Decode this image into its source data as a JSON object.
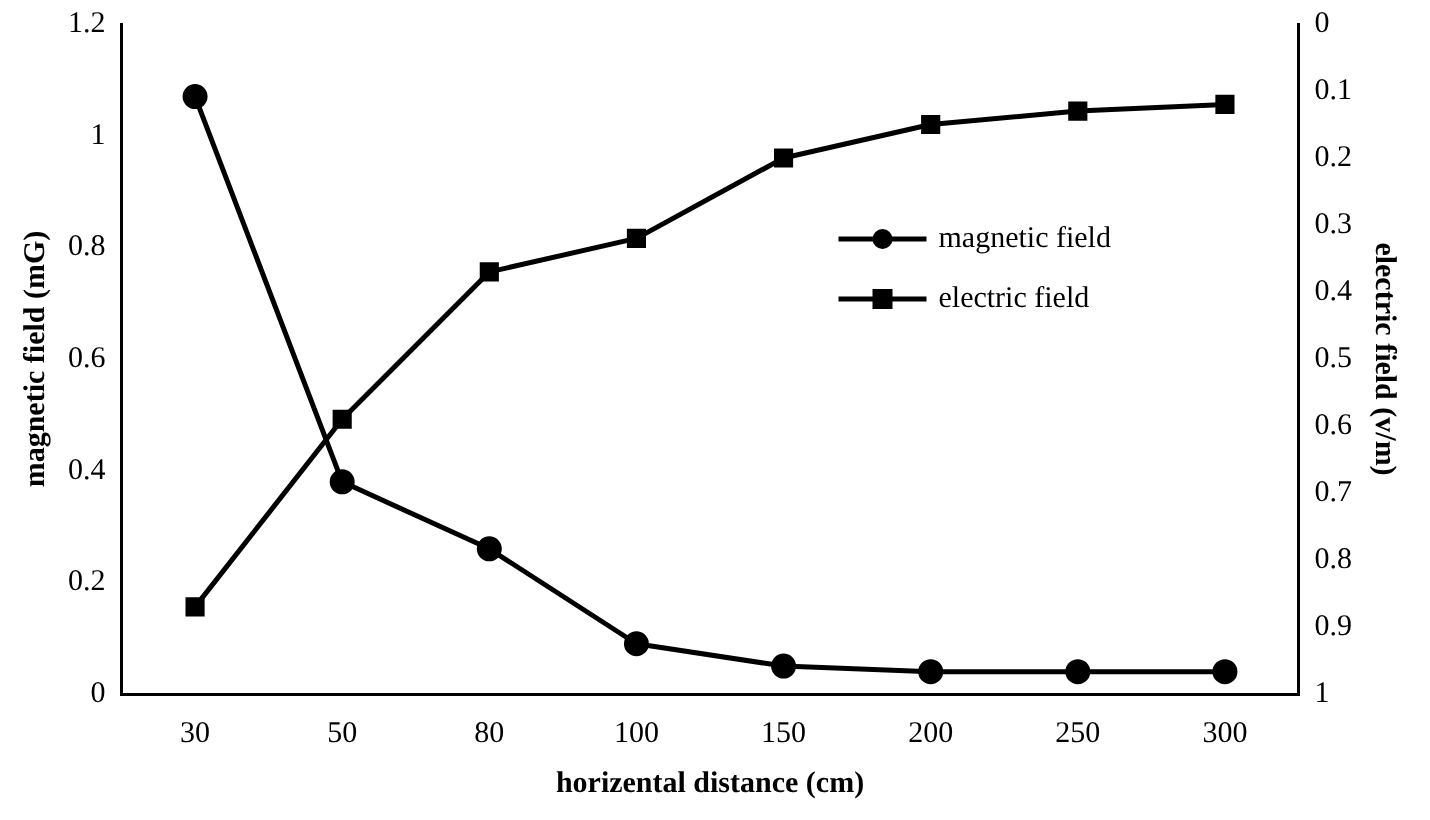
{
  "chart_data": {
    "type": "line",
    "xlabel": "horizental distance (cm)",
    "ylabel": "magnetic field (mG)",
    "y2label": "electric field (v/m)",
    "categories": [
      "30",
      "50",
      "80",
      "100",
      "150",
      "200",
      "250",
      "300"
    ],
    "series": [
      {
        "name": "magnetic field",
        "color": "#000000",
        "marker": "circle",
        "values": [
          1.07,
          0.38,
          0.26,
          0.09,
          0.05,
          0.04,
          0.04,
          0.04
        ]
      },
      {
        "name": "electric field",
        "color": "#000000",
        "marker": "square",
        "axis": "y2",
        "values": [
          0.87,
          0.59,
          0.37,
          0.32,
          0.2,
          0.15,
          0.13,
          0.12
        ]
      }
    ],
    "ylim": [
      0,
      1.2
    ],
    "yticks": [
      0,
      0.2,
      0.4,
      0.6,
      0.8,
      1,
      1.2
    ],
    "y2lim": [
      1,
      0
    ],
    "y2ticks": [
      0,
      0.1,
      0.2,
      0.3,
      0.4,
      0.5,
      0.6,
      0.7,
      0.8,
      0.9,
      1
    ],
    "grid": false,
    "legend": "right",
    "line_style": "solid"
  }
}
